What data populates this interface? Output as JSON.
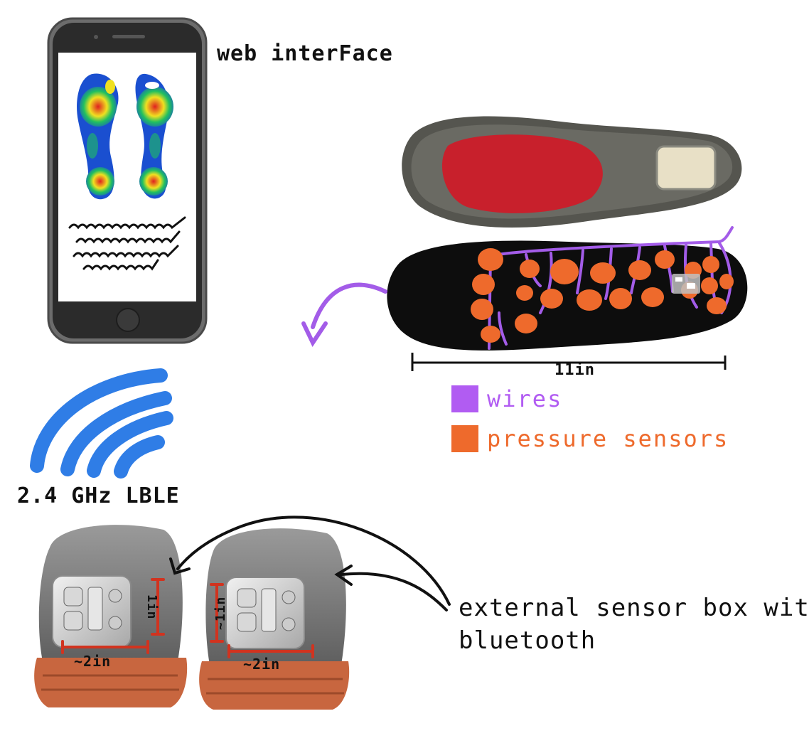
{
  "labels": {
    "web_interface": "web interFace",
    "ble": "2.4 GHz LBLE",
    "insole_length": "11in",
    "sensor_box": "external sensor box with",
    "sensor_box_line2": "bluetooth",
    "box_width_left": "~2in",
    "box_width_right": "~2in",
    "box_height_left": "1in",
    "box_height_right": "~1in"
  },
  "legend": [
    {
      "label": "wires",
      "color": "#b15cf2"
    },
    {
      "label": "pressure sensors",
      "color": "#ee6a2c"
    }
  ],
  "colors": {
    "wire": "#a35ce8",
    "sensor": "#ee6a2c",
    "signal": "#2f7de6",
    "measure": "#d1331f",
    "sole": "#c8663f",
    "phone_frame": "#6c6c6c"
  },
  "icons": {
    "phone": "smartphone-icon",
    "signal": "wireless-signal-icon"
  }
}
